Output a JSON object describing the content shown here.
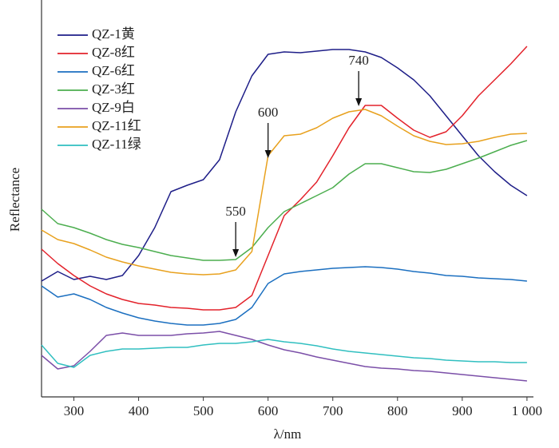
{
  "chart_data": {
    "type": "line",
    "x_label": "λ/nm",
    "y_label": "Reflectance",
    "x": [
      250,
      275,
      300,
      325,
      350,
      375,
      400,
      425,
      450,
      475,
      500,
      525,
      550,
      575,
      600,
      625,
      650,
      675,
      700,
      725,
      750,
      775,
      800,
      825,
      850,
      875,
      900,
      925,
      950,
      975,
      1000
    ],
    "series": [
      {
        "name": "QZ-1黄",
        "color": "#1e1e88",
        "values": [
          145,
          157,
          147,
          151,
          147,
          152,
          177,
          212,
          257,
          265,
          272,
          297,
          357,
          402,
          429,
          432,
          431,
          433,
          435,
          435,
          432,
          425,
          412,
          397,
          377,
          352,
          327,
          302,
          282,
          265,
          252
        ]
      },
      {
        "name": "QZ-8红",
        "color": "#e3222b",
        "values": [
          185,
          167,
          152,
          139,
          129,
          122,
          117,
          115,
          112,
          111,
          109,
          109,
          112,
          127,
          177,
          227,
          247,
          269,
          302,
          337,
          365,
          365,
          349,
          334,
          325,
          332,
          352,
          377,
          397,
          417,
          439
        ]
      },
      {
        "name": "QZ-6红",
        "color": "#1b6fc0",
        "values": [
          139,
          125,
          129,
          122,
          112,
          105,
          99,
          95,
          92,
          90,
          90,
          92,
          97,
          112,
          142,
          154,
          157,
          159,
          161,
          162,
          163,
          162,
          160,
          157,
          155,
          152,
          151,
          149,
          148,
          147,
          145
        ]
      },
      {
        "name": "QZ-3红",
        "color": "#4cae4f",
        "values": [
          235,
          217,
          212,
          205,
          197,
          191,
          187,
          182,
          177,
          174,
          171,
          171,
          172,
          187,
          212,
          232,
          242,
          252,
          262,
          279,
          292,
          292,
          287,
          282,
          281,
          285,
          292,
          299,
          307,
          315,
          321
        ]
      },
      {
        "name": "QZ-9白",
        "color": "#7b4fa8",
        "values": [
          52,
          35,
          39,
          57,
          77,
          80,
          77,
          77,
          77,
          79,
          80,
          82,
          77,
          72,
          65,
          59,
          55,
          50,
          46,
          42,
          38,
          36,
          35,
          33,
          32,
          30,
          28,
          26,
          24,
          22,
          20
        ]
      },
      {
        "name": "QZ-11红",
        "color": "#e8a11e",
        "values": [
          209,
          197,
          192,
          184,
          175,
          169,
          164,
          160,
          156,
          154,
          153,
          154,
          159,
          182,
          302,
          327,
          329,
          337,
          349,
          357,
          360,
          352,
          339,
          327,
          320,
          316,
          317,
          320,
          325,
          329,
          330
        ]
      },
      {
        "name": "QZ-11绿",
        "color": "#30bfc0",
        "values": [
          65,
          42,
          37,
          52,
          57,
          60,
          60,
          61,
          62,
          62,
          65,
          67,
          67,
          69,
          72,
          69,
          67,
          64,
          60,
          57,
          55,
          53,
          51,
          49,
          48,
          46,
          45,
          44,
          44,
          43,
          43
        ]
      }
    ],
    "xlim": [
      250,
      1010
    ],
    "xticks": [
      300,
      400,
      500,
      600,
      700,
      800,
      900,
      {
        "value": 1000,
        "label": "1 000"
      }
    ],
    "ylim": [
      0,
      497
    ],
    "annotations": [
      {
        "x": 550,
        "y": 175
      },
      {
        "x": 600,
        "y": 299
      },
      {
        "x": 740,
        "y": 364
      }
    ],
    "legend": "upper left"
  }
}
